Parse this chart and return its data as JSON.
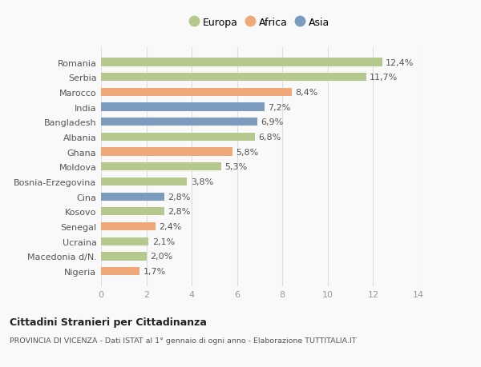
{
  "categories": [
    "Romania",
    "Serbia",
    "Marocco",
    "India",
    "Bangladesh",
    "Albania",
    "Ghana",
    "Moldova",
    "Bosnia-Erzegovina",
    "Cina",
    "Kosovo",
    "Senegal",
    "Ucraina",
    "Macedonia d/N.",
    "Nigeria"
  ],
  "values": [
    12.4,
    11.7,
    8.4,
    7.2,
    6.9,
    6.8,
    5.8,
    5.3,
    3.8,
    2.8,
    2.8,
    2.4,
    2.1,
    2.0,
    1.7
  ],
  "continent": [
    "Europa",
    "Europa",
    "Africa",
    "Asia",
    "Asia",
    "Europa",
    "Africa",
    "Europa",
    "Europa",
    "Asia",
    "Europa",
    "Africa",
    "Europa",
    "Europa",
    "Africa"
  ],
  "colors": {
    "Europa": "#b5c98e",
    "Africa": "#f0a878",
    "Asia": "#7b9bbf"
  },
  "labels": [
    "12,4%",
    "11,7%",
    "8,4%",
    "7,2%",
    "6,9%",
    "6,8%",
    "5,8%",
    "5,3%",
    "3,8%",
    "2,8%",
    "2,8%",
    "2,4%",
    "2,1%",
    "2,0%",
    "1,7%"
  ],
  "xlim": [
    0,
    14
  ],
  "xticks": [
    0,
    2,
    4,
    6,
    8,
    10,
    12,
    14
  ],
  "title": "Cittadini Stranieri per Cittadinanza",
  "subtitle": "PROVINCIA DI VICENZA - Dati ISTAT al 1° gennaio di ogni anno - Elaborazione TUTTITALIA.IT",
  "bg_color": "#f9f9f9",
  "grid_color": "#dddddd",
  "legend_labels": [
    "Europa",
    "Africa",
    "Asia"
  ],
  "legend_colors": [
    "#b5c98e",
    "#f0a878",
    "#7b9bbf"
  ]
}
